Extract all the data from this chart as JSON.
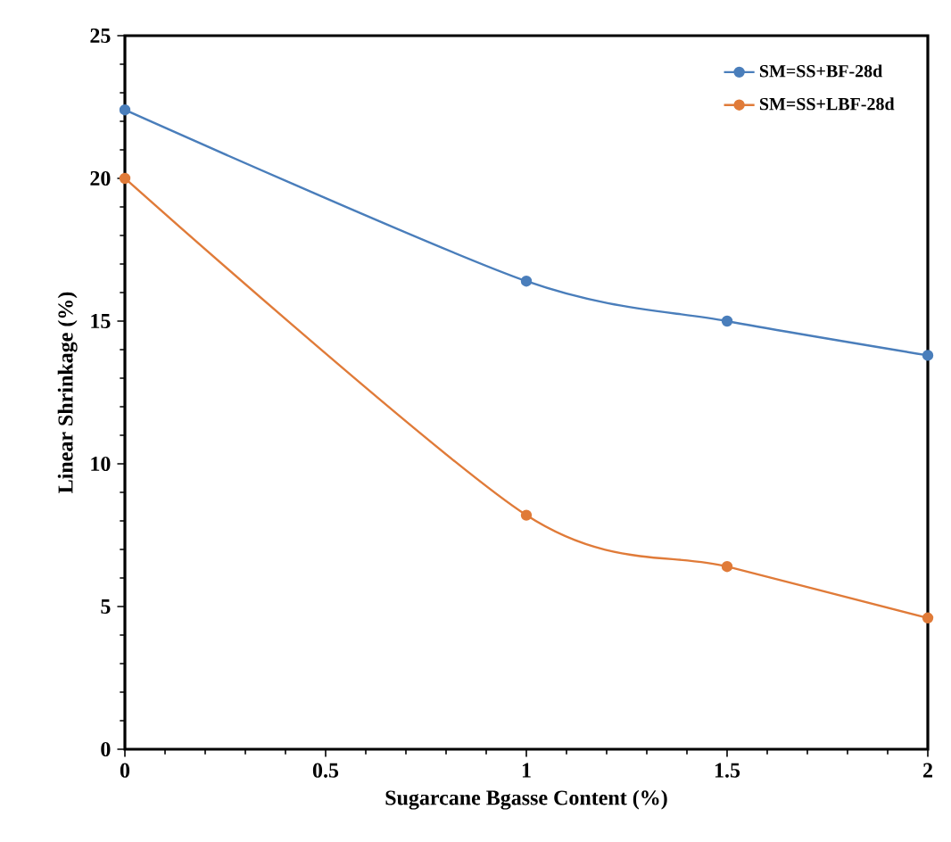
{
  "chart_data": {
    "type": "line",
    "xlabel": "Sugarcane Bgasse Content (%)",
    "ylabel": "Linear Shrinkage (%)",
    "x": [
      0,
      1,
      1.5,
      2
    ],
    "series": [
      {
        "name": "SM=SS+BF-28d",
        "color": "#4a7ebb",
        "values": [
          22.4,
          16.4,
          15.0,
          13.8
        ]
      },
      {
        "name": "SM=SS+LBF-28d",
        "color": "#e07b39",
        "values": [
          20.0,
          8.2,
          6.4,
          4.6
        ]
      }
    ],
    "xlim": [
      0,
      2
    ],
    "ylim": [
      0,
      25
    ],
    "xticks": [
      0,
      0.5,
      1,
      1.5,
      2
    ],
    "yticks": [
      0,
      5,
      10,
      15,
      20,
      25
    ],
    "grid": false,
    "legend": "top right",
    "marker": "circle",
    "line_style": "solid"
  }
}
